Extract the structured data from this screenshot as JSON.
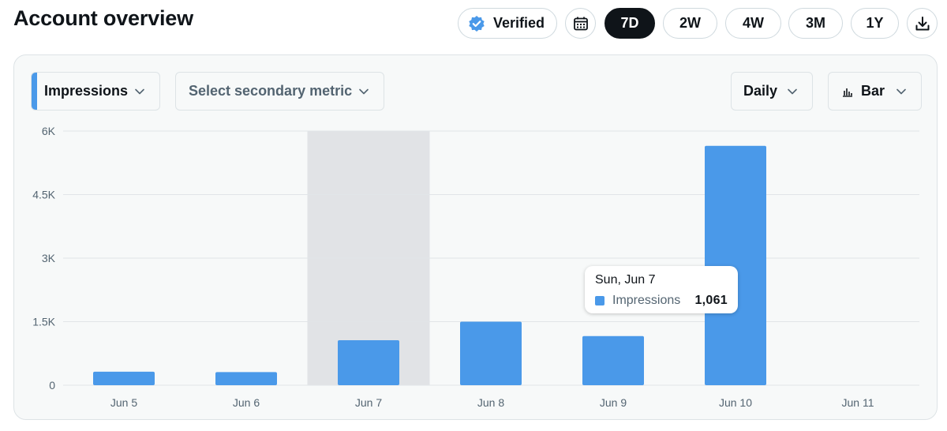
{
  "header": {
    "title": "Account overview",
    "verified_label": "Verified",
    "ranges": [
      "7D",
      "2W",
      "4W",
      "3M",
      "1Y"
    ],
    "active_range": "7D"
  },
  "controls": {
    "primary_metric": "Impressions",
    "secondary_metric_placeholder": "Select secondary metric",
    "interval": "Daily",
    "chart_type": "Bar"
  },
  "colors": {
    "accent": "#4a99e9",
    "active_pill": "#0f1419",
    "highlight_band": "#e1e3e6"
  },
  "tooltip": {
    "title": "Sun, Jun 7",
    "metric": "Impressions",
    "value": "1,061"
  },
  "chart_data": {
    "type": "bar",
    "categories": [
      "Jun 5",
      "Jun 6",
      "Jun 7",
      "Jun 8",
      "Jun 9",
      "Jun 10",
      "Jun 11"
    ],
    "series": [
      {
        "name": "Impressions",
        "values": [
          320,
          310,
          1061,
          1500,
          1160,
          5650,
          0
        ]
      }
    ],
    "y_ticks": [
      "0",
      "1.5K",
      "3K",
      "4.5K",
      "6K"
    ],
    "y_tick_values": [
      0,
      1500,
      3000,
      4500,
      6000
    ],
    "ylim": [
      0,
      6000
    ],
    "highlighted_category": "Jun 7",
    "grid": true
  }
}
